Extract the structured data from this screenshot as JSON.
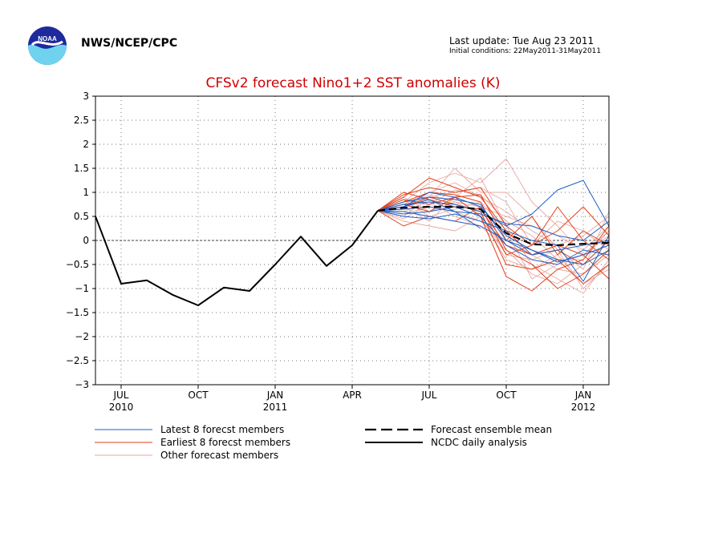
{
  "header": {
    "agency": "NWS/NCEP/CPC",
    "last_update": "Last update: Tue Aug 23 2011",
    "initial_conditions": "Initial conditions: 22May2011-31May2011",
    "logo_text": "NOAA"
  },
  "colors": {
    "latest": "#1f5fc4",
    "earliest": "#e0421c",
    "other": "#e8a7a0",
    "analysis": "#000000",
    "title": "#d00000"
  },
  "chart_data": {
    "type": "line",
    "title": "CFSv2 forecast Nino1+2 SST anomalies (K)",
    "ylim": [
      -3,
      3
    ],
    "yticks": [
      3,
      2.5,
      2,
      1.5,
      1,
      0.5,
      0,
      -0.5,
      -1,
      -1.5,
      -2,
      -2.5,
      -3
    ],
    "ytick_labels": [
      "3",
      "2.5",
      "2",
      "1.5",
      "1",
      "0.5",
      "0",
      "−0.5",
      "−1",
      "−1.5",
      "−2",
      "−2.5",
      "−3"
    ],
    "xlim": [
      "2010-06",
      "2012-02"
    ],
    "xticks": [
      {
        "date": "2010-07",
        "label": "JUL",
        "year": "2010"
      },
      {
        "date": "2010-10",
        "label": "OCT",
        "year": ""
      },
      {
        "date": "2011-01",
        "label": "JAN",
        "year": "2011"
      },
      {
        "date": "2011-04",
        "label": "APR",
        "year": ""
      },
      {
        "date": "2011-07",
        "label": "JUL",
        "year": ""
      },
      {
        "date": "2011-10",
        "label": "OCT",
        "year": ""
      },
      {
        "date": "2012-01",
        "label": "JAN",
        "year": "2012"
      }
    ],
    "grid": true,
    "zero_line": true,
    "legend": [
      {
        "label": "Latest 8 forecst members",
        "style": "latest"
      },
      {
        "label": "Earliest 8 forecst members",
        "style": "earliest"
      },
      {
        "label": "Other forecast members",
        "style": "other"
      },
      {
        "label": "Forecast ensemble mean",
        "style": "mean"
      },
      {
        "label": "NCDC daily analysis",
        "style": "analysis"
      }
    ],
    "forecast_x": [
      "2011-05",
      "2011-06",
      "2011-07",
      "2011-08",
      "2011-09",
      "2011-10",
      "2011-11",
      "2011-12",
      "2012-01",
      "2012-02"
    ],
    "series": [
      {
        "group": "analysis",
        "x": [
          "2010-06",
          "2010-07",
          "2010-08",
          "2010-09",
          "2010-10",
          "2010-11",
          "2010-12",
          "2011-01",
          "2011-02",
          "2011-03",
          "2011-04",
          "2011-05"
        ],
        "values": [
          0.5,
          -0.9,
          -0.83,
          -1.13,
          -1.35,
          -0.98,
          -1.05,
          -0.5,
          0.08,
          -0.53,
          -0.1,
          0.62
        ]
      },
      {
        "group": "mean",
        "values": [
          0.62,
          0.68,
          0.7,
          0.7,
          0.65,
          0.15,
          -0.08,
          -0.1,
          -0.07,
          -0.05
        ]
      },
      {
        "group": "latest",
        "values": [
          0.62,
          0.75,
          0.8,
          0.75,
          0.6,
          0.3,
          0.55,
          1.05,
          1.25,
          0.3
        ]
      },
      {
        "group": "latest",
        "values": [
          0.62,
          0.7,
          1.0,
          0.9,
          0.7,
          0.1,
          -0.2,
          -0.4,
          -0.5,
          -0.2
        ]
      },
      {
        "group": "latest",
        "values": [
          0.62,
          0.5,
          0.45,
          0.55,
          0.4,
          0.2,
          0.0,
          -0.1,
          -0.85,
          0.1
        ]
      },
      {
        "group": "latest",
        "values": [
          0.62,
          0.8,
          0.9,
          0.85,
          0.75,
          0.0,
          -0.3,
          -0.2,
          -0.1,
          0.0
        ]
      },
      {
        "group": "latest",
        "values": [
          0.62,
          0.55,
          0.6,
          0.7,
          0.5,
          -0.1,
          -0.4,
          -0.5,
          -0.2,
          -0.3
        ]
      },
      {
        "group": "latest",
        "values": [
          0.62,
          0.65,
          0.7,
          0.6,
          0.55,
          0.35,
          0.3,
          0.1,
          0.0,
          0.4
        ]
      },
      {
        "group": "latest",
        "values": [
          0.62,
          0.6,
          0.5,
          0.4,
          0.3,
          0.0,
          -0.2,
          -0.45,
          -0.3,
          -0.1
        ]
      },
      {
        "group": "latest_short",
        "values": [
          0.62,
          0.7,
          0.85,
          0.6,
          0.25
        ]
      },
      {
        "group": "earliest",
        "values": [
          0.62,
          0.9,
          1.3,
          1.1,
          0.9,
          0.2,
          -0.3,
          -0.1,
          -0.3,
          -0.8
        ]
      },
      {
        "group": "earliest",
        "values": [
          0.62,
          0.85,
          0.75,
          0.9,
          0.5,
          -0.75,
          -1.05,
          -0.6,
          -0.4,
          0.3
        ]
      },
      {
        "group": "earliest",
        "values": [
          0.62,
          0.95,
          1.1,
          1.0,
          1.1,
          0.3,
          -0.1,
          0.2,
          0.7,
          0.1
        ]
      },
      {
        "group": "earliest",
        "values": [
          0.62,
          0.7,
          0.9,
          0.75,
          0.6,
          -0.5,
          -0.6,
          -0.4,
          -0.9,
          -0.5
        ]
      },
      {
        "group": "earliest",
        "values": [
          0.62,
          0.3,
          0.5,
          0.4,
          0.7,
          -0.3,
          -0.1,
          0.7,
          0.0,
          -0.4
        ]
      },
      {
        "group": "earliest",
        "values": [
          0.62,
          0.8,
          1.0,
          0.95,
          0.8,
          -0.2,
          -0.5,
          -1.0,
          -0.7,
          -0.2
        ]
      },
      {
        "group": "earliest",
        "values": [
          0.62,
          0.75,
          0.6,
          0.9,
          0.95,
          0.0,
          0.5,
          -0.3,
          0.2,
          -0.1
        ]
      },
      {
        "group": "earliest",
        "values": [
          0.62,
          1.0,
          0.85,
          0.7,
          0.65,
          -0.1,
          -0.3,
          -0.2,
          -0.5,
          0.0
        ]
      },
      {
        "group": "other",
        "values": [
          0.62,
          0.8,
          1.2,
          1.4,
          1.2,
          1.7,
          0.8,
          0.3,
          -0.3,
          0.2
        ]
      },
      {
        "group": "other",
        "values": [
          0.62,
          0.5,
          0.9,
          1.5,
          1.0,
          1.0,
          0.5,
          -0.2,
          -0.6,
          0.6
        ]
      },
      {
        "group": "other",
        "values": [
          0.62,
          0.7,
          0.4,
          0.9,
          1.3,
          0.3,
          -0.5,
          -0.8,
          -1.1,
          -0.4
        ]
      },
      {
        "group": "other",
        "values": [
          0.62,
          0.6,
          0.8,
          0.5,
          0.3,
          -0.2,
          -0.7,
          -0.9,
          -0.5,
          0.0
        ]
      },
      {
        "group": "other",
        "values": [
          0.62,
          0.9,
          0.6,
          0.8,
          0.7,
          0.5,
          0.3,
          0.1,
          -0.2,
          0.3
        ]
      },
      {
        "group": "other",
        "values": [
          0.62,
          0.4,
          0.3,
          0.2,
          0.5,
          -0.4,
          -0.6,
          -0.3,
          -0.9,
          -0.6
        ]
      },
      {
        "group": "other",
        "values": [
          0.62,
          0.75,
          1.0,
          1.2,
          0.9,
          0.6,
          0.2,
          -0.1,
          0.1,
          0.5
        ]
      },
      {
        "group": "other",
        "values": [
          0.62,
          0.55,
          0.7,
          0.6,
          0.4,
          -0.1,
          -0.3,
          -0.6,
          -0.7,
          -0.3
        ]
      },
      {
        "group": "other",
        "values": [
          0.62,
          0.65,
          0.9,
          1.0,
          1.1,
          0.8,
          -0.1,
          0.4,
          0.2,
          -0.2
        ]
      },
      {
        "group": "other",
        "values": [
          0.62,
          0.85,
          0.5,
          0.65,
          0.8,
          0.2,
          -0.8,
          -0.5,
          -0.3,
          0.1
        ]
      },
      {
        "group": "other",
        "values": [
          0.62,
          0.7,
          0.95,
          0.8,
          0.55,
          -0.3,
          -0.4,
          -0.2,
          -1.0,
          -0.5
        ]
      },
      {
        "group": "other",
        "values": [
          0.62,
          0.45,
          0.75,
          1.05,
          0.95,
          0.4,
          0.1,
          -0.4,
          -0.4,
          0.2
        ]
      }
    ]
  }
}
